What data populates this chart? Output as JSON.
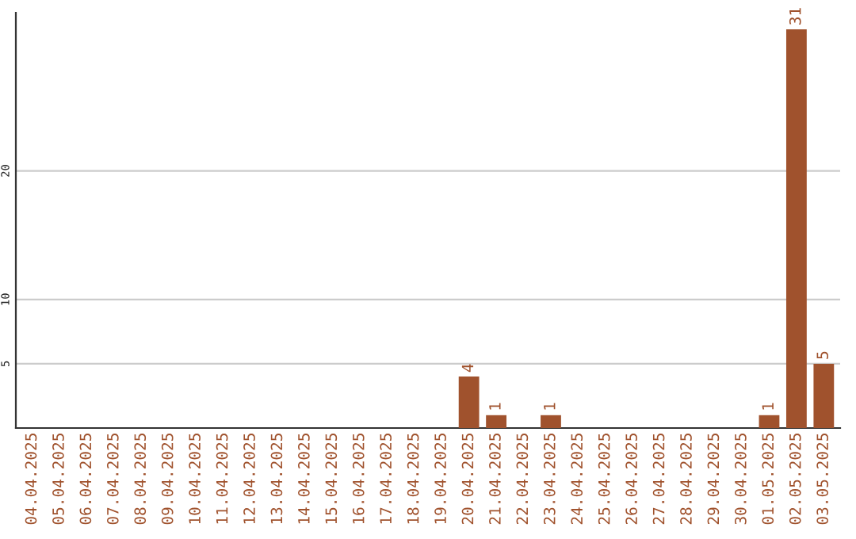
{
  "chart_data": {
    "type": "bar",
    "categories": [
      "04.04.2025",
      "05.04.2025",
      "06.04.2025",
      "07.04.2025",
      "08.04.2025",
      "09.04.2025",
      "10.04.2025",
      "11.04.2025",
      "12.04.2025",
      "13.04.2025",
      "14.04.2025",
      "15.04.2025",
      "16.04.2025",
      "17.04.2025",
      "18.04.2025",
      "19.04.2025",
      "20.04.2025",
      "21.04.2025",
      "22.04.2025",
      "23.04.2025",
      "24.04.2025",
      "25.04.2025",
      "26.04.2025",
      "27.04.2025",
      "28.04.2025",
      "29.04.2025",
      "30.04.2025",
      "01.05.2025",
      "02.05.2025",
      "03.05.2025"
    ],
    "values": [
      0,
      0,
      0,
      0,
      0,
      0,
      0,
      0,
      0,
      0,
      0,
      0,
      0,
      0,
      0,
      0,
      4,
      1,
      0,
      1,
      0,
      0,
      0,
      0,
      0,
      0,
      0,
      1,
      31,
      5
    ],
    "value_labels": [
      null,
      null,
      null,
      null,
      null,
      null,
      null,
      null,
      null,
      null,
      null,
      null,
      null,
      null,
      null,
      null,
      "4",
      "1",
      null,
      "1",
      null,
      null,
      null,
      null,
      null,
      null,
      null,
      "1",
      "31",
      "5"
    ],
    "color": "#a0522d",
    "ylim": [
      0,
      32.3
    ],
    "yticks": [
      5,
      10,
      20
    ],
    "grid": "y"
  }
}
